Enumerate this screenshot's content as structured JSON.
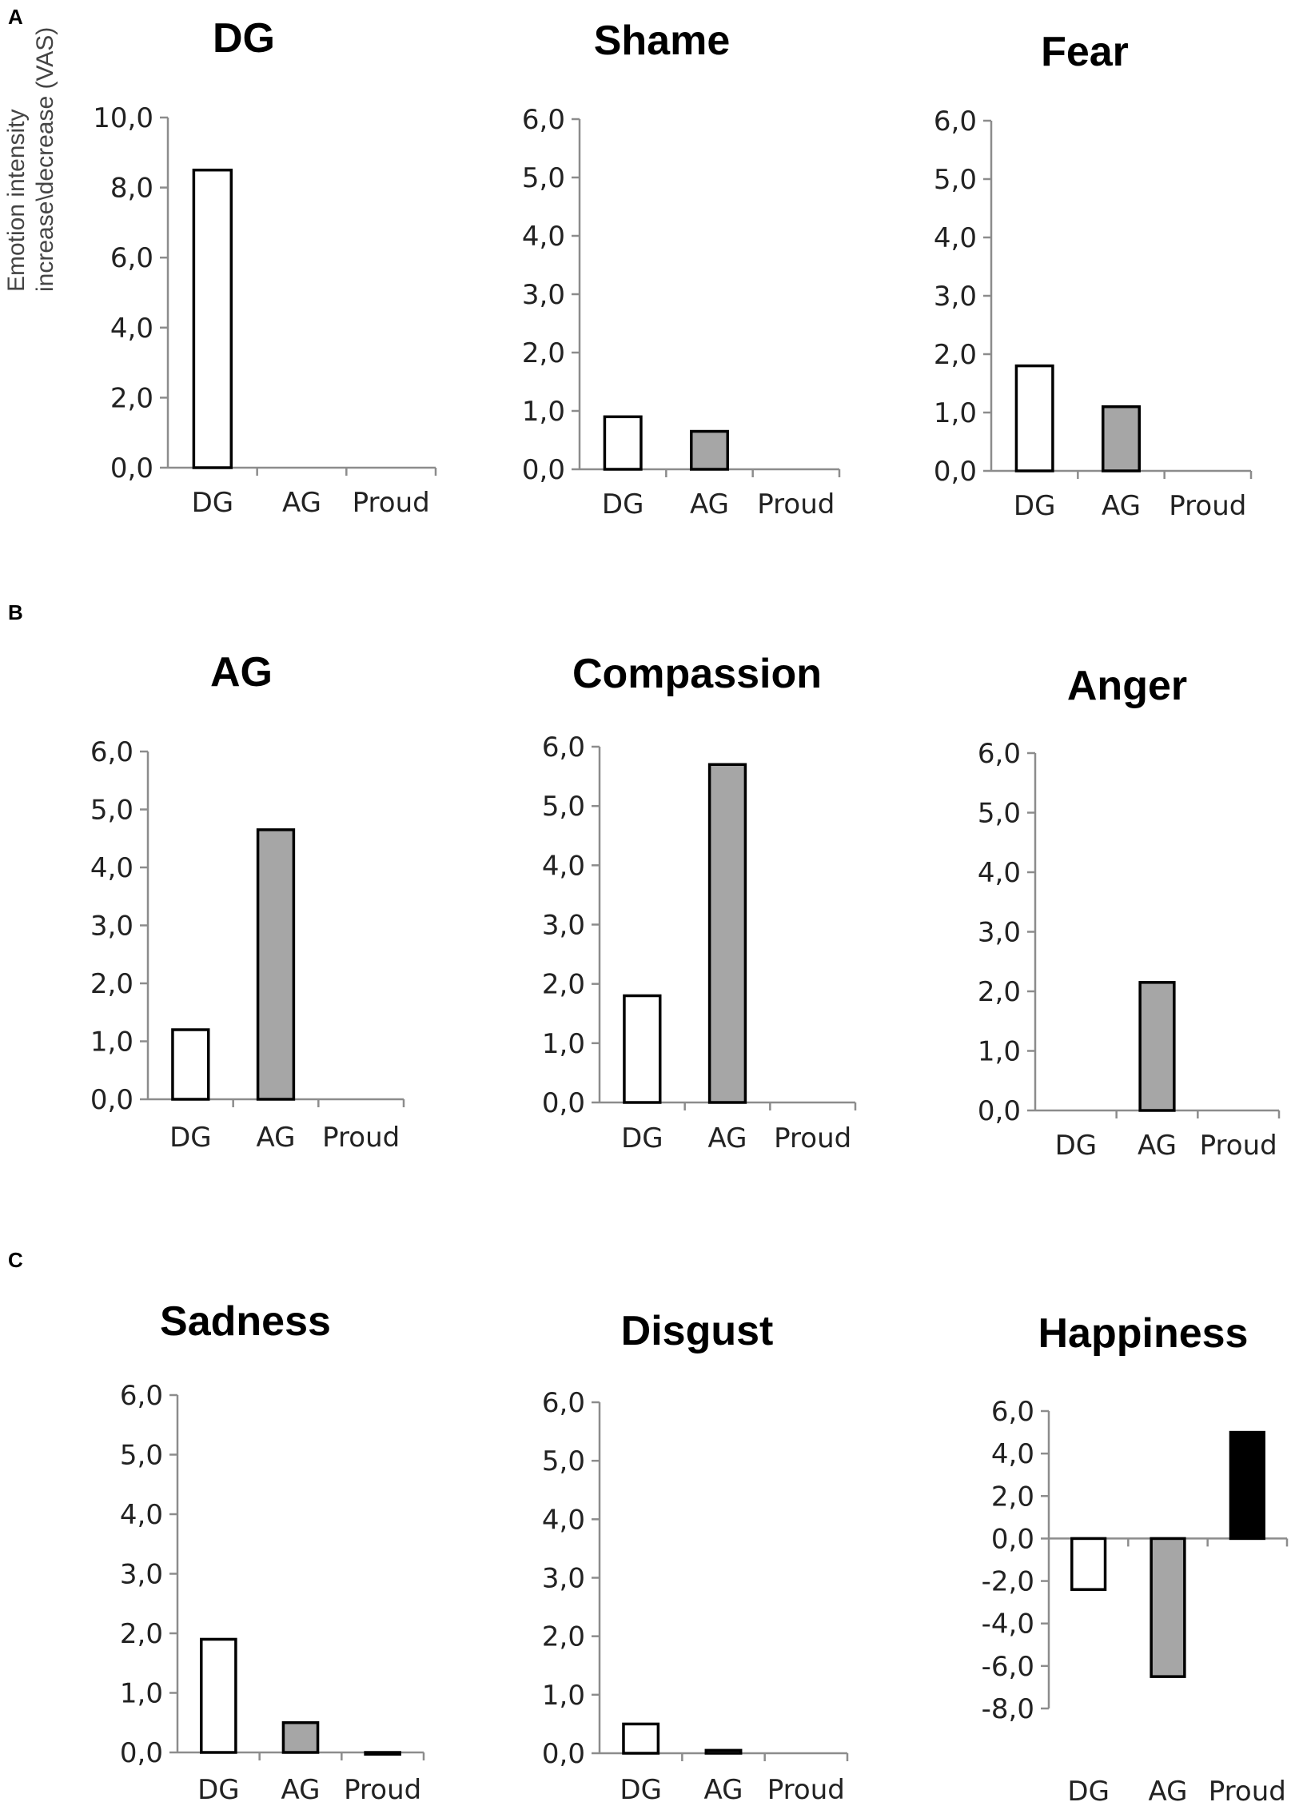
{
  "panels": [
    {
      "letter": "A"
    },
    {
      "letter": "B"
    },
    {
      "letter": "C"
    }
  ],
  "y_axis_label": [
    "Emotion intensity",
    "increase\\decrease (VAS)"
  ],
  "colors": {
    "DG": "#ffffff",
    "AG": "#a6a6a6",
    "Proud": "#000000",
    "Proud_sadness": "#8ea2c6",
    "axis": "#8c8c8c"
  },
  "chart_data": [
    {
      "type": "bar",
      "title": "DG",
      "panel": "A",
      "categories": [
        "DG",
        "AG",
        "Proud"
      ],
      "values": [
        8.5,
        0,
        0
      ],
      "ylim": [
        0,
        10
      ],
      "yticks": [
        "0,0",
        "2,0",
        "4,0",
        "6,0",
        "8,0",
        "10,0"
      ],
      "ytick_values": [
        0,
        2,
        4,
        6,
        8,
        10
      ],
      "ylabel": "Emotion intensity increase\\decrease (VAS)"
    },
    {
      "type": "bar",
      "title": "Shame",
      "panel": "A",
      "categories": [
        "DG",
        "AG",
        "Proud"
      ],
      "values": [
        0.9,
        0.65,
        0
      ],
      "ylim": [
        0,
        6
      ],
      "yticks": [
        "0,0",
        "1,0",
        "2,0",
        "3,0",
        "4,0",
        "5,0",
        "6,0"
      ],
      "ytick_values": [
        0,
        1,
        2,
        3,
        4,
        5,
        6
      ]
    },
    {
      "type": "bar",
      "title": "Fear",
      "panel": "A",
      "categories": [
        "DG",
        "AG",
        "Proud"
      ],
      "values": [
        1.8,
        1.1,
        0
      ],
      "ylim": [
        0,
        6
      ],
      "yticks": [
        "0,0",
        "1,0",
        "2,0",
        "3,0",
        "4,0",
        "5,0",
        "6,0"
      ],
      "ytick_values": [
        0,
        1,
        2,
        3,
        4,
        5,
        6
      ]
    },
    {
      "type": "bar",
      "title": "AG",
      "panel": "B",
      "categories": [
        "DG",
        "AG",
        "Proud"
      ],
      "values": [
        1.2,
        4.65,
        0
      ],
      "ylim": [
        0,
        6
      ],
      "yticks": [
        "0,0",
        "1,0",
        "2,0",
        "3,0",
        "4,0",
        "5,0",
        "6,0"
      ],
      "ytick_values": [
        0,
        1,
        2,
        3,
        4,
        5,
        6
      ]
    },
    {
      "type": "bar",
      "title": "Compassion",
      "panel": "B",
      "categories": [
        "DG",
        "AG",
        "Proud"
      ],
      "values": [
        1.8,
        5.7,
        0
      ],
      "ylim": [
        0,
        6
      ],
      "yticks": [
        "0,0",
        "1,0",
        "2,0",
        "3,0",
        "4,0",
        "5,0",
        "6,0"
      ],
      "ytick_values": [
        0,
        1,
        2,
        3,
        4,
        5,
        6
      ]
    },
    {
      "type": "bar",
      "title": "Anger",
      "panel": "B",
      "categories": [
        "DG",
        "AG",
        "Proud"
      ],
      "values": [
        0,
        2.15,
        0
      ],
      "ylim": [
        0,
        6
      ],
      "yticks": [
        "0,0",
        "1,0",
        "2,0",
        "3,0",
        "4,0",
        "5,0",
        "6,0"
      ],
      "ytick_values": [
        0,
        1,
        2,
        3,
        4,
        5,
        6
      ]
    },
    {
      "type": "bar",
      "title": "Sadness",
      "panel": "C",
      "categories": [
        "DG",
        "AG",
        "Proud"
      ],
      "values": [
        1.9,
        0.5,
        -0.03
      ],
      "ylim": [
        0,
        6
      ],
      "yticks": [
        "0,0",
        "1,0",
        "2,0",
        "3,0",
        "4,0",
        "5,0",
        "6,0"
      ],
      "ytick_values": [
        0,
        1,
        2,
        3,
        4,
        5,
        6
      ]
    },
    {
      "type": "bar",
      "title": "Disgust",
      "panel": "C",
      "categories": [
        "DG",
        "AG",
        "Proud"
      ],
      "values": [
        0.5,
        0.05,
        0
      ],
      "ylim": [
        0,
        6
      ],
      "yticks": [
        "0,0",
        "1,0",
        "2,0",
        "3,0",
        "4,0",
        "5,0",
        "6,0"
      ],
      "ytick_values": [
        0,
        1,
        2,
        3,
        4,
        5,
        6
      ]
    },
    {
      "type": "bar",
      "title": "Happiness",
      "panel": "C",
      "categories": [
        "DG",
        "AG",
        "Proud"
      ],
      "values": [
        -2.4,
        -6.5,
        5.0
      ],
      "ylim": [
        -8,
        6
      ],
      "yticks": [
        "-8,0",
        "-6,0",
        "-4,0",
        "-2,0",
        "0,0",
        "2,0",
        "4,0",
        "6,0"
      ],
      "ytick_values": [
        -8,
        -6,
        -4,
        -2,
        0,
        2,
        4,
        6
      ]
    }
  ]
}
